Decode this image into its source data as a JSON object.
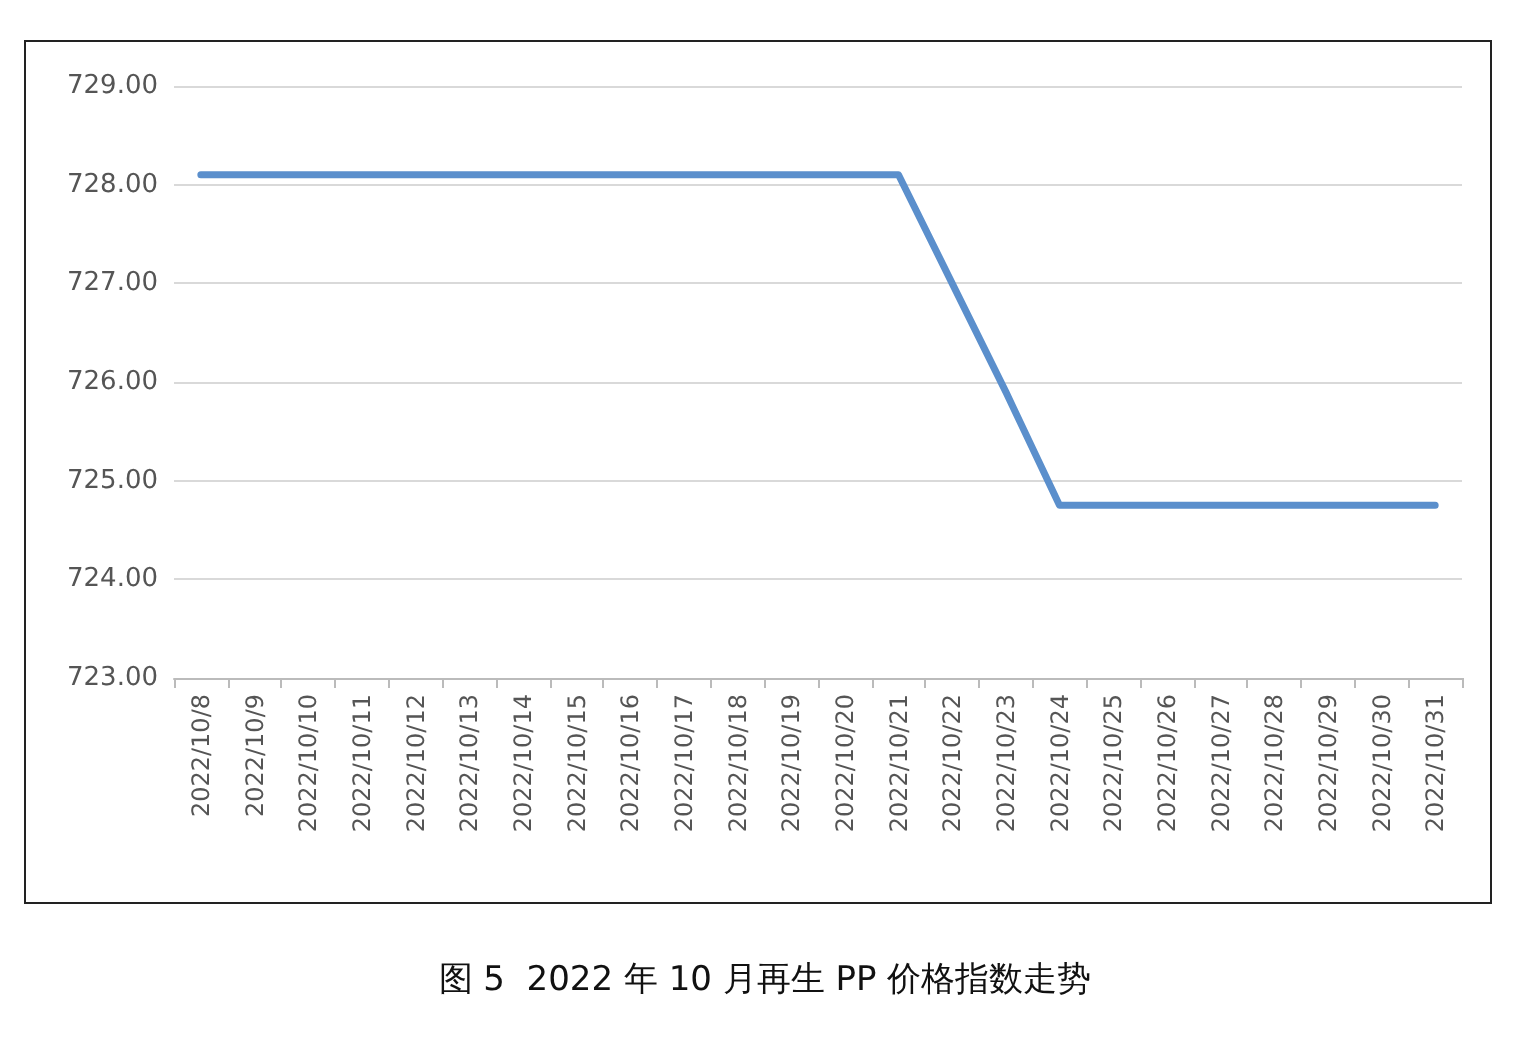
{
  "chart_data": {
    "type": "line",
    "categories": [
      "2022/10/8",
      "2022/10/9",
      "2022/10/10",
      "2022/10/11",
      "2022/10/12",
      "2022/10/13",
      "2022/10/14",
      "2022/10/15",
      "2022/10/16",
      "2022/10/17",
      "2022/10/18",
      "2022/10/19",
      "2022/10/20",
      "2022/10/21",
      "2022/10/22",
      "2022/10/23",
      "2022/10/24",
      "2022/10/25",
      "2022/10/26",
      "2022/10/27",
      "2022/10/28",
      "2022/10/29",
      "2022/10/30",
      "2022/10/31"
    ],
    "series": [
      {
        "color": "#5b8fcc",
        "values": [
          728.1,
          728.1,
          728.1,
          728.1,
          728.1,
          728.1,
          728.1,
          728.1,
          728.1,
          728.1,
          728.1,
          728.1,
          728.1,
          728.1,
          727.0,
          725.9,
          724.75,
          724.75,
          724.75,
          724.75,
          724.75,
          724.75,
          724.75,
          724.75
        ]
      }
    ],
    "ylim": [
      723,
      729
    ],
    "yticks": [
      {
        "value": 723,
        "label": "723.00"
      },
      {
        "value": 724,
        "label": "724.00"
      },
      {
        "value": 725,
        "label": "725.00"
      },
      {
        "value": 726,
        "label": "726.00"
      },
      {
        "value": 727,
        "label": "727.00"
      },
      {
        "value": 728,
        "label": "728.00"
      },
      {
        "value": 729,
        "label": "729.00"
      }
    ],
    "grid": "y",
    "marker": "none",
    "line_style": "solid",
    "annotations": [
      "图 5  2022 年 10 月再生 PP 价格指数走势"
    ]
  }
}
